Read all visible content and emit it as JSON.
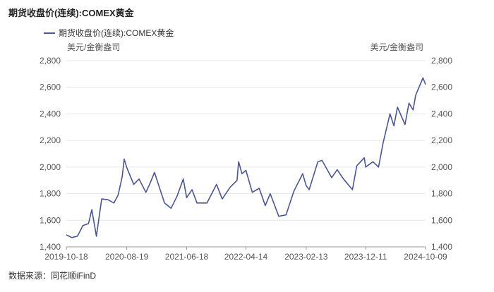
{
  "chart_data": {
    "type": "line",
    "title": "期货收盘价(连续):COMEX黄金",
    "legend": "COMEX黄金",
    "legend_label": "期货收盘价(连续):COMEX黄金",
    "unit_left": "美元/金衡盎司",
    "unit_right": "美元/金衡盎司",
    "ylim": [
      1400,
      2800
    ],
    "y_ticks": [
      "1,400",
      "1,600",
      "1,800",
      "2,000",
      "2,200",
      "2,400",
      "2,600",
      "2,800"
    ],
    "y_tick_values": [
      1400,
      1600,
      1800,
      2000,
      2200,
      2400,
      2600,
      2800
    ],
    "x_ticks": [
      "2019-10-18",
      "2020-08-19",
      "2021-06-18",
      "2022-04-14",
      "2023-02-13",
      "2023-12-11",
      "2024-10-09"
    ],
    "x_start": "2019-10-18",
    "x_end": "2024-10-09",
    "grid": true,
    "line_color": "#4a5592",
    "series": [
      {
        "name": "期货收盘价(连续):COMEX黄金",
        "points": [
          [
            "2019-10-18",
            1490
          ],
          [
            "2019-11-15",
            1470
          ],
          [
            "2019-12-13",
            1480
          ],
          [
            "2020-01-10",
            1560
          ],
          [
            "2020-02-07",
            1575
          ],
          [
            "2020-02-24",
            1680
          ],
          [
            "2020-03-18",
            1480
          ],
          [
            "2020-04-14",
            1760
          ],
          [
            "2020-05-15",
            1755
          ],
          [
            "2020-06-15",
            1730
          ],
          [
            "2020-07-06",
            1790
          ],
          [
            "2020-07-27",
            1930
          ],
          [
            "2020-08-06",
            2060
          ],
          [
            "2020-08-19",
            1995
          ],
          [
            "2020-09-23",
            1870
          ],
          [
            "2020-10-20",
            1910
          ],
          [
            "2020-11-24",
            1810
          ],
          [
            "2020-12-18",
            1890
          ],
          [
            "2021-01-06",
            1960
          ],
          [
            "2021-02-26",
            1730
          ],
          [
            "2021-03-31",
            1690
          ],
          [
            "2021-04-30",
            1780
          ],
          [
            "2021-06-01",
            1910
          ],
          [
            "2021-06-18",
            1770
          ],
          [
            "2021-07-15",
            1830
          ],
          [
            "2021-08-09",
            1730
          ],
          [
            "2021-09-29",
            1730
          ],
          [
            "2021-11-16",
            1870
          ],
          [
            "2021-12-15",
            1760
          ],
          [
            "2022-01-25",
            1850
          ],
          [
            "2022-02-28",
            1900
          ],
          [
            "2022-03-08",
            2040
          ],
          [
            "2022-03-25",
            1950
          ],
          [
            "2022-04-14",
            1975
          ],
          [
            "2022-05-16",
            1810
          ],
          [
            "2022-06-20",
            1840
          ],
          [
            "2022-07-21",
            1710
          ],
          [
            "2022-08-15",
            1800
          ],
          [
            "2022-09-27",
            1630
          ],
          [
            "2022-11-03",
            1640
          ],
          [
            "2022-12-13",
            1820
          ],
          [
            "2023-01-26",
            1950
          ],
          [
            "2023-02-13",
            1860
          ],
          [
            "2023-02-28",
            1830
          ],
          [
            "2023-04-13",
            2040
          ],
          [
            "2023-05-04",
            2050
          ],
          [
            "2023-06-22",
            1920
          ],
          [
            "2023-07-20",
            1980
          ],
          [
            "2023-08-21",
            1910
          ],
          [
            "2023-10-05",
            1830
          ],
          [
            "2023-10-27",
            2010
          ],
          [
            "2023-12-04",
            2070
          ],
          [
            "2023-12-11",
            2000
          ],
          [
            "2024-01-17",
            2040
          ],
          [
            "2024-02-14",
            2000
          ],
          [
            "2024-03-08",
            2180
          ],
          [
            "2024-04-12",
            2400
          ],
          [
            "2024-05-02",
            2310
          ],
          [
            "2024-05-20",
            2450
          ],
          [
            "2024-06-27",
            2320
          ],
          [
            "2024-07-17",
            2480
          ],
          [
            "2024-08-07",
            2430
          ],
          [
            "2024-08-20",
            2540
          ],
          [
            "2024-09-20",
            2650
          ],
          [
            "2024-09-26",
            2670
          ],
          [
            "2024-10-09",
            2620
          ]
        ]
      }
    ]
  },
  "footer": {
    "source": "数据来源：同花顺iFinD"
  }
}
